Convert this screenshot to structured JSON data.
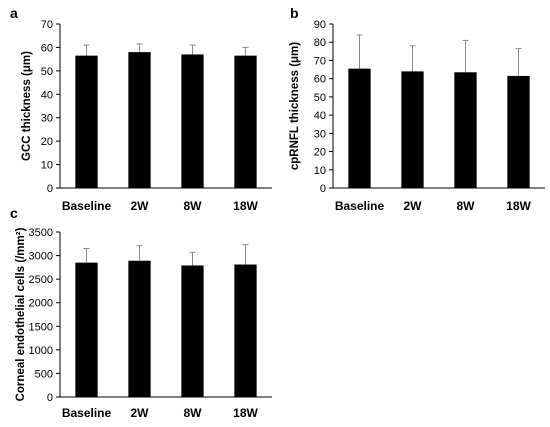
{
  "chart_data": [
    {
      "type": "bar",
      "panel": "a",
      "categories": [
        "Baseline",
        "2W",
        "8W",
        "18W"
      ],
      "values": [
        56.5,
        58,
        57,
        56.5
      ],
      "errors": [
        4.5,
        3.5,
        4,
        3.5
      ],
      "ylabel": "GCC thickness (μm)",
      "ylim": [
        0,
        70
      ],
      "yticks": [
        0,
        10,
        20,
        30,
        40,
        50,
        60,
        70
      ],
      "grid": false,
      "bar_color": "#000000"
    },
    {
      "type": "bar",
      "panel": "b",
      "categories": [
        "Baseline",
        "2W",
        "8W",
        "18W"
      ],
      "values": [
        65.5,
        64,
        63.5,
        61.5
      ],
      "errors": [
        18.5,
        14,
        17.5,
        15
      ],
      "ylabel": "cpRNFL thickness (μm)",
      "ylim": [
        0,
        90
      ],
      "yticks": [
        0,
        10,
        20,
        30,
        40,
        50,
        60,
        70,
        80,
        90
      ],
      "grid": false,
      "bar_color": "#000000"
    },
    {
      "type": "bar",
      "panel": "c",
      "categories": [
        "Baseline",
        "2W",
        "8W",
        "18W"
      ],
      "values": [
        2850,
        2890,
        2790,
        2810
      ],
      "errors": [
        300,
        320,
        280,
        420
      ],
      "ylabel": "Corneal endothelial cells (/mm²)",
      "ylim": [
        0,
        3500
      ],
      "yticks": [
        0,
        500,
        1000,
        1500,
        2000,
        2500,
        3000,
        3500
      ],
      "grid": false,
      "bar_color": "#000000"
    }
  ]
}
